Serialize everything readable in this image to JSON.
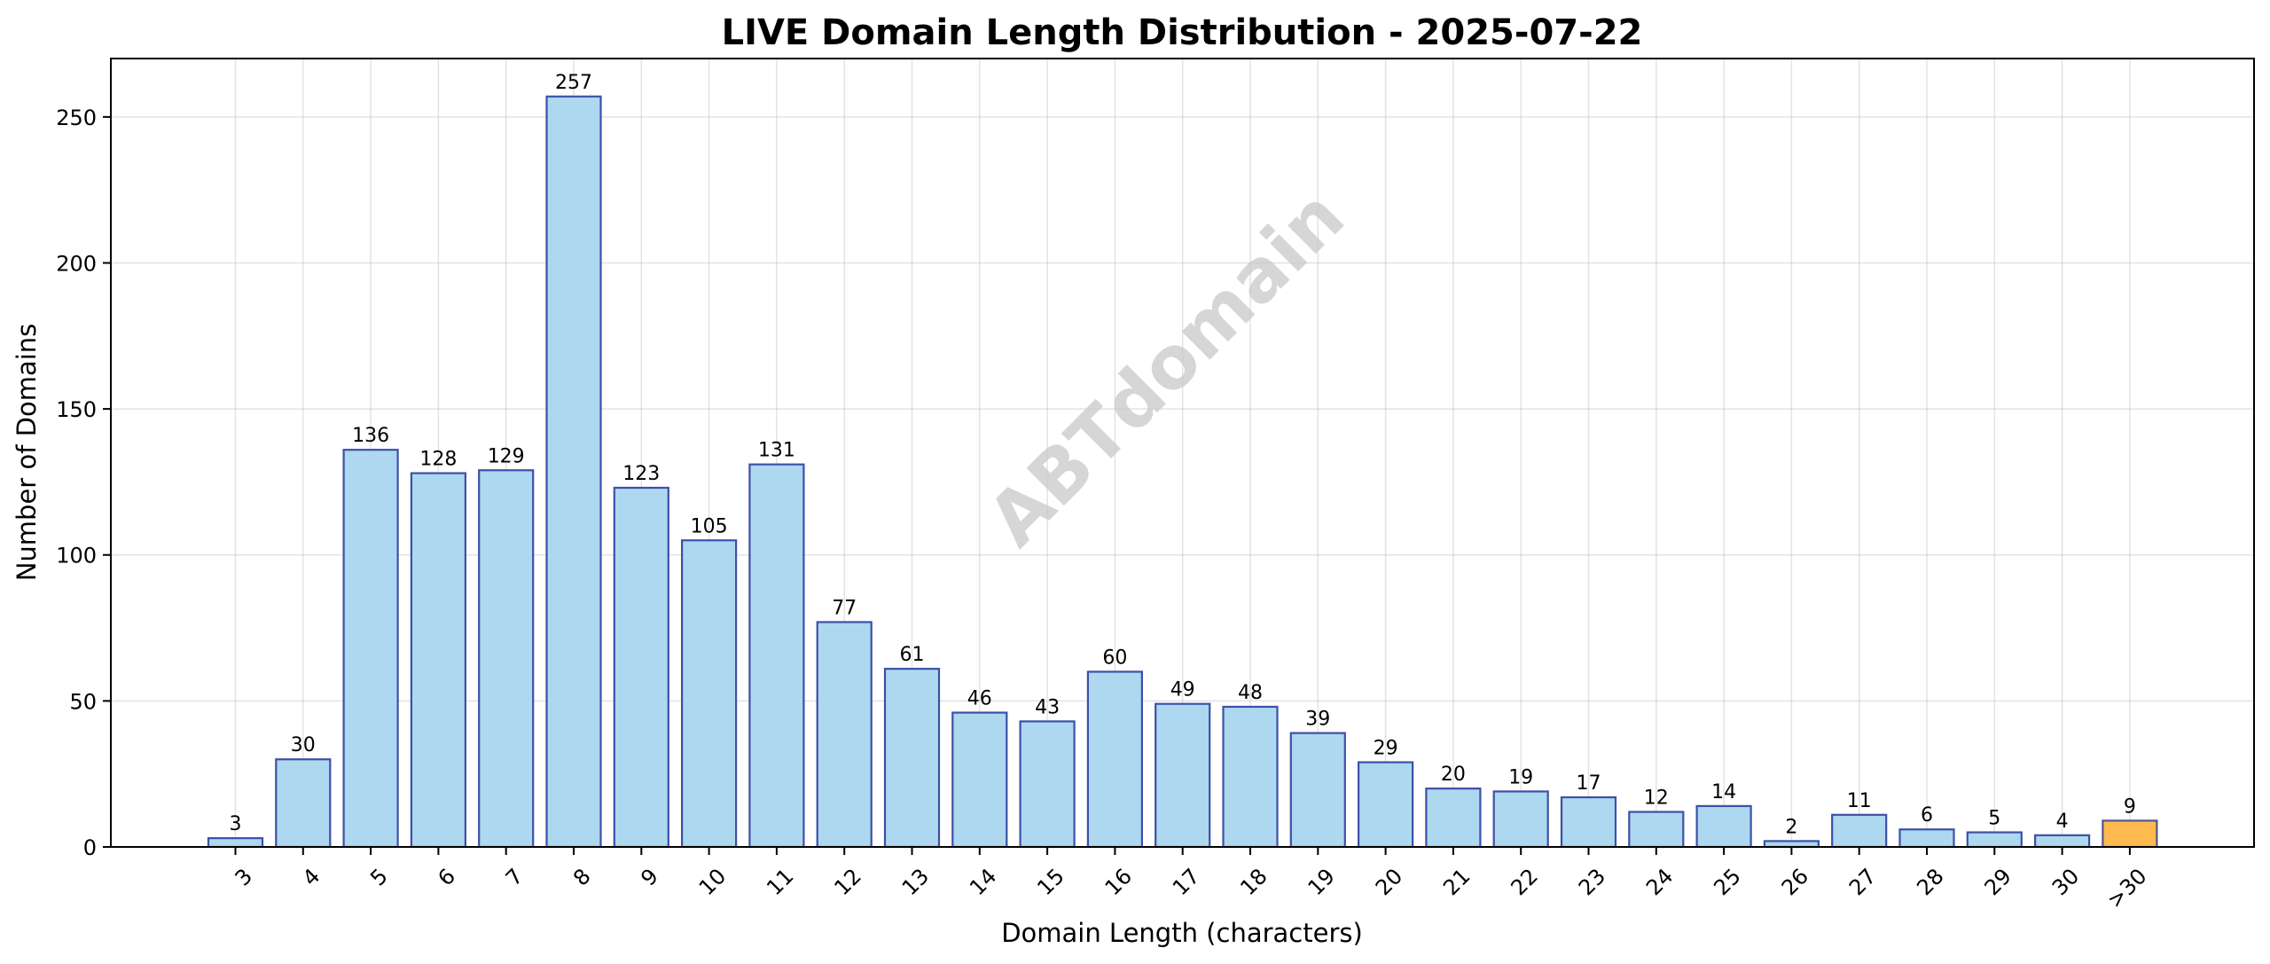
{
  "chart_data": {
    "type": "bar",
    "title": "LIVE Domain Length Distribution - 2025-07-22",
    "xlabel": "Domain Length (characters)",
    "ylabel": "Number of Domains",
    "categories": [
      "3",
      "4",
      "5",
      "6",
      "7",
      "8",
      "9",
      "10",
      "11",
      "12",
      "13",
      "14",
      "15",
      "16",
      "17",
      "18",
      "19",
      "20",
      "21",
      "22",
      "23",
      "24",
      "25",
      "26",
      "27",
      "28",
      "29",
      "30",
      ">30"
    ],
    "values": [
      3,
      30,
      136,
      128,
      129,
      257,
      123,
      105,
      131,
      77,
      61,
      46,
      43,
      60,
      49,
      48,
      39,
      29,
      20,
      19,
      17,
      12,
      14,
      2,
      11,
      6,
      5,
      4,
      9
    ],
    "ylim": [
      0,
      270
    ],
    "yticks": [
      "0",
      "50",
      "100",
      "150",
      "200",
      "250"
    ],
    "grid": true,
    "watermark": "ABTdomain",
    "colors": {
      "bar_fill": "#add8ef",
      "bar_edge": "#3e4fa8",
      "overflow_fill": "#ffba4d",
      "overflow_edge": "#56548c"
    },
    "highlight_category": ">30"
  }
}
